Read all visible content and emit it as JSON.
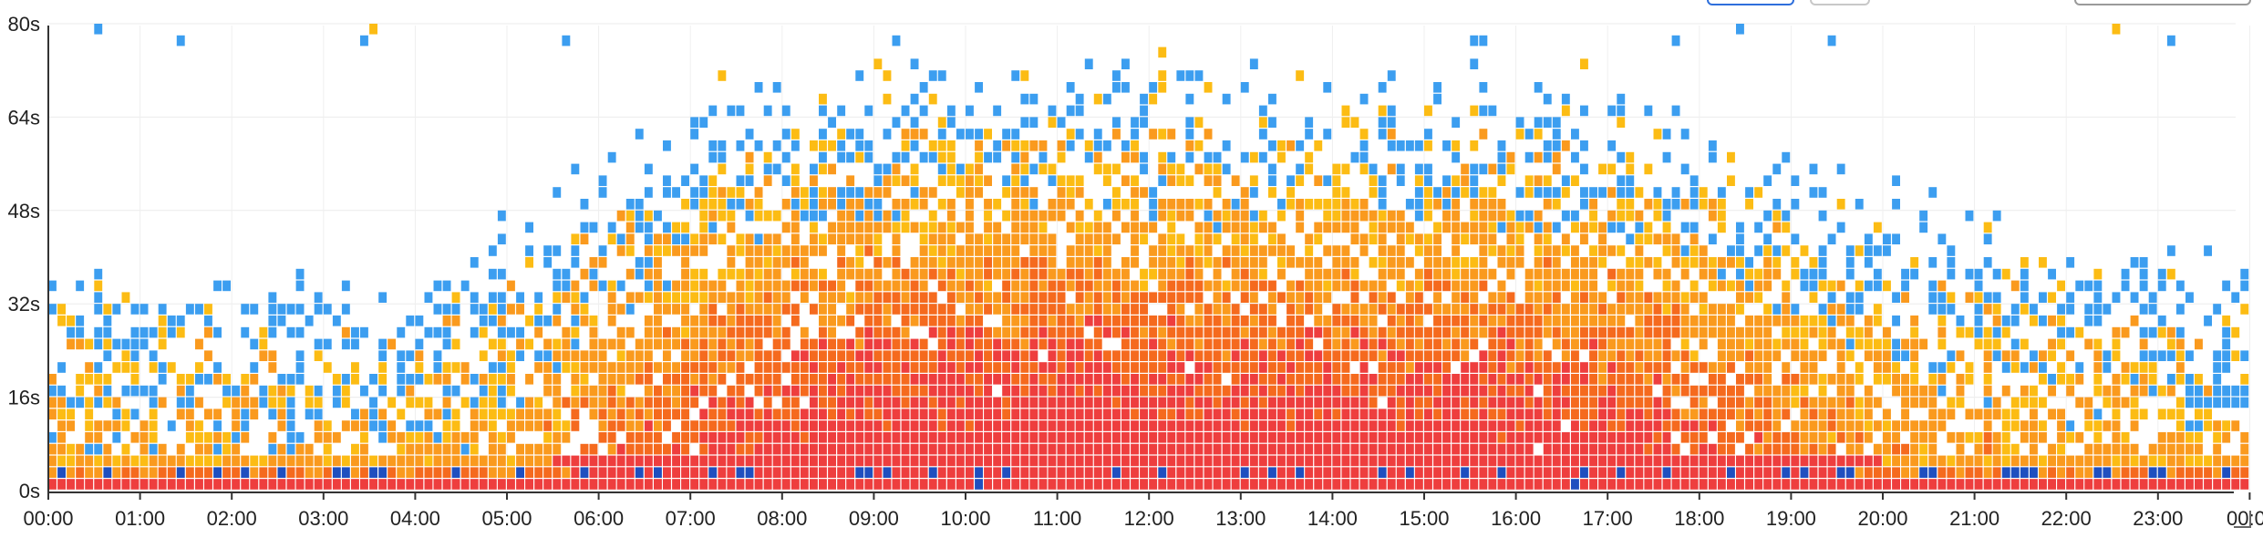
{
  "chart_data": {
    "type": "heatmap",
    "title": "",
    "xlabel": "",
    "ylabel": "",
    "x_ticks": [
      "00:00",
      "01:00",
      "02:00",
      "03:00",
      "04:00",
      "05:00",
      "06:00",
      "07:00",
      "08:00",
      "09:00",
      "10:00",
      "11:00",
      "12:00",
      "13:00",
      "14:00",
      "15:00",
      "16:00",
      "17:00",
      "18:00",
      "19:00",
      "20:00",
      "21:00",
      "22:00",
      "23:00",
      "00:0"
    ],
    "y_ticks": [
      "80s",
      "64s",
      "48s",
      "32s",
      "16s",
      "0s"
    ],
    "xlim_hours": [
      0,
      24
    ],
    "ylim_seconds": [
      0,
      80
    ],
    "x_bucket_minutes": 6,
    "y_bucket_seconds": 2,
    "grid": true,
    "color_scale": [
      {
        "level": 1,
        "color": "#3c9ef0"
      },
      {
        "level": 2,
        "color": "#fcbc14"
      },
      {
        "level": 3,
        "color": "#fa9a1e"
      },
      {
        "level": 4,
        "color": "#f56a1e"
      },
      {
        "level": 5,
        "color": "#ee3e3e"
      },
      {
        "level": 6,
        "color": "#1f4fbf"
      }
    ],
    "activity_by_hour": [
      {
        "hour": "00:00",
        "spread_s": 32,
        "intensity": 0.35
      },
      {
        "hour": "01:00",
        "spread_s": 32,
        "intensity": 0.33
      },
      {
        "hour": "02:00",
        "spread_s": 30,
        "intensity": 0.3
      },
      {
        "hour": "03:00",
        "spread_s": 30,
        "intensity": 0.3
      },
      {
        "hour": "04:00",
        "spread_s": 30,
        "intensity": 0.32
      },
      {
        "hour": "05:00",
        "spread_s": 40,
        "intensity": 0.42
      },
      {
        "hour": "06:00",
        "spread_s": 46,
        "intensity": 0.62
      },
      {
        "hour": "07:00",
        "spread_s": 56,
        "intensity": 0.82
      },
      {
        "hour": "08:00",
        "spread_s": 60,
        "intensity": 0.92
      },
      {
        "hour": "09:00",
        "spread_s": 62,
        "intensity": 0.96
      },
      {
        "hour": "10:00",
        "spread_s": 62,
        "intensity": 0.97
      },
      {
        "hour": "11:00",
        "spread_s": 62,
        "intensity": 1.0
      },
      {
        "hour": "12:00",
        "spread_s": 62,
        "intensity": 0.98
      },
      {
        "hour": "13:00",
        "spread_s": 60,
        "intensity": 0.95
      },
      {
        "hour": "14:00",
        "spread_s": 60,
        "intensity": 0.96
      },
      {
        "hour": "15:00",
        "spread_s": 60,
        "intensity": 0.95
      },
      {
        "hour": "16:00",
        "spread_s": 60,
        "intensity": 0.93
      },
      {
        "hour": "17:00",
        "spread_s": 58,
        "intensity": 0.88
      },
      {
        "hour": "18:00",
        "spread_s": 54,
        "intensity": 0.75
      },
      {
        "hour": "19:00",
        "spread_s": 48,
        "intensity": 0.6
      },
      {
        "hour": "20:00",
        "spread_s": 44,
        "intensity": 0.5
      },
      {
        "hour": "21:00",
        "spread_s": 40,
        "intensity": 0.45
      },
      {
        "hour": "22:00",
        "spread_s": 38,
        "intensity": 0.42
      },
      {
        "hour": "23:00",
        "spread_s": 34,
        "intensity": 0.38
      }
    ]
  }
}
